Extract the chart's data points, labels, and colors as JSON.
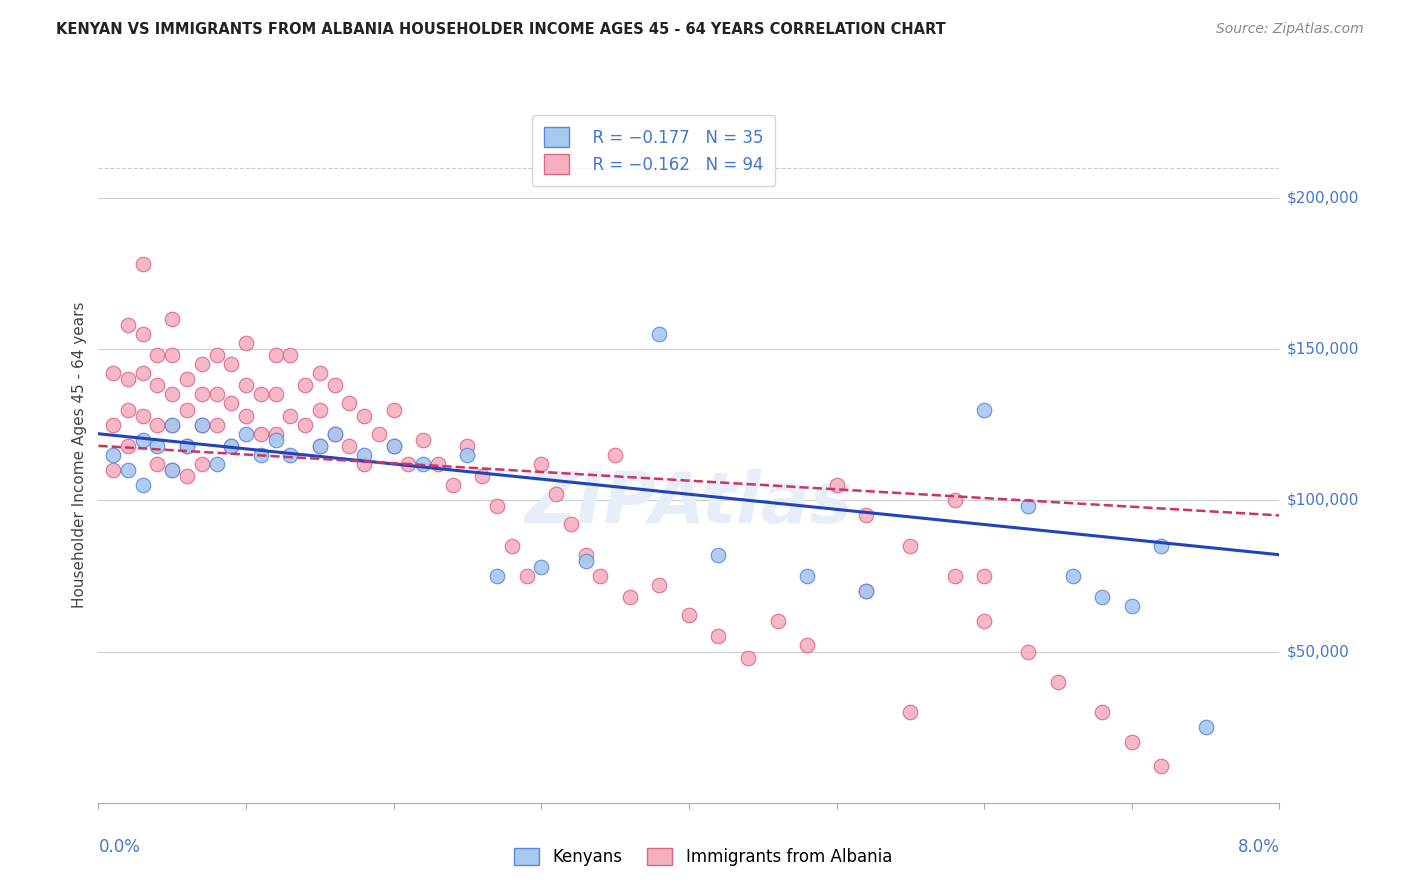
{
  "title": "KENYAN VS IMMIGRANTS FROM ALBANIA HOUSEHOLDER INCOME AGES 45 - 64 YEARS CORRELATION CHART",
  "source": "Source: ZipAtlas.com",
  "ylabel": "Householder Income Ages 45 - 64 years",
  "blue_color": "#a8c8f0",
  "blue_edge": "#5588dd",
  "pink_color": "#f5b0c0",
  "pink_edge": "#dd6688",
  "blue_line_color": "#2244bb",
  "pink_line_color": "#cc3366",
  "ytick_color": "#4477cc",
  "xlabel_color": "#4477cc",
  "title_color": "#222222",
  "source_color": "#888888",
  "watermark_color": "#ddddee",
  "grid_color": "#cccccc",
  "xlim": [
    0.0,
    0.08
  ],
  "ylim": [
    0,
    230000
  ],
  "ytick_positions": [
    50000,
    100000,
    150000,
    200000
  ],
  "ytick_labels": [
    "$50,000",
    "$100,000",
    "$150,000",
    "$200,000"
  ],
  "blue_x": [
    0.001,
    0.002,
    0.003,
    0.003,
    0.004,
    0.005,
    0.005,
    0.006,
    0.007,
    0.008,
    0.009,
    0.01,
    0.011,
    0.012,
    0.013,
    0.015,
    0.016,
    0.018,
    0.02,
    0.022,
    0.025,
    0.027,
    0.03,
    0.033,
    0.038,
    0.042,
    0.048,
    0.052,
    0.06,
    0.063,
    0.066,
    0.068,
    0.07,
    0.072,
    0.075
  ],
  "blue_y": [
    115000,
    110000,
    120000,
    105000,
    118000,
    125000,
    110000,
    118000,
    125000,
    112000,
    118000,
    122000,
    115000,
    120000,
    115000,
    118000,
    122000,
    115000,
    118000,
    112000,
    115000,
    75000,
    78000,
    80000,
    155000,
    82000,
    75000,
    70000,
    130000,
    98000,
    75000,
    68000,
    65000,
    85000,
    25000
  ],
  "pink_x": [
    0.001,
    0.001,
    0.001,
    0.002,
    0.002,
    0.002,
    0.002,
    0.003,
    0.003,
    0.003,
    0.003,
    0.004,
    0.004,
    0.004,
    0.004,
    0.005,
    0.005,
    0.005,
    0.005,
    0.005,
    0.006,
    0.006,
    0.006,
    0.006,
    0.007,
    0.007,
    0.007,
    0.007,
    0.008,
    0.008,
    0.008,
    0.009,
    0.009,
    0.009,
    0.01,
    0.01,
    0.01,
    0.011,
    0.011,
    0.012,
    0.012,
    0.012,
    0.013,
    0.013,
    0.014,
    0.014,
    0.015,
    0.015,
    0.015,
    0.016,
    0.016,
    0.017,
    0.017,
    0.018,
    0.018,
    0.019,
    0.02,
    0.02,
    0.021,
    0.022,
    0.023,
    0.024,
    0.025,
    0.026,
    0.027,
    0.028,
    0.029,
    0.03,
    0.031,
    0.032,
    0.033,
    0.034,
    0.035,
    0.036,
    0.038,
    0.04,
    0.042,
    0.044,
    0.046,
    0.048,
    0.05,
    0.052,
    0.055,
    0.058,
    0.06,
    0.063,
    0.065,
    0.068,
    0.07,
    0.072,
    0.052,
    0.055,
    0.058,
    0.06
  ],
  "pink_y": [
    142000,
    125000,
    110000,
    158000,
    140000,
    130000,
    118000,
    178000,
    155000,
    142000,
    128000,
    148000,
    138000,
    125000,
    112000,
    160000,
    148000,
    135000,
    125000,
    110000,
    140000,
    130000,
    118000,
    108000,
    145000,
    135000,
    125000,
    112000,
    148000,
    135000,
    125000,
    145000,
    132000,
    118000,
    152000,
    138000,
    128000,
    135000,
    122000,
    148000,
    135000,
    122000,
    148000,
    128000,
    138000,
    125000,
    142000,
    130000,
    118000,
    138000,
    122000,
    132000,
    118000,
    128000,
    112000,
    122000,
    130000,
    118000,
    112000,
    120000,
    112000,
    105000,
    118000,
    108000,
    98000,
    85000,
    75000,
    112000,
    102000,
    92000,
    82000,
    75000,
    115000,
    68000,
    72000,
    62000,
    55000,
    48000,
    60000,
    52000,
    105000,
    95000,
    85000,
    75000,
    60000,
    50000,
    40000,
    30000,
    20000,
    12000,
    70000,
    30000,
    100000,
    75000
  ],
  "blue_trend_x0": 0.0,
  "blue_trend_x1": 0.08,
  "blue_trend_y0": 122000,
  "blue_trend_y1": 82000,
  "pink_trend_x0": 0.0,
  "pink_trend_x1": 0.08,
  "pink_trend_y0": 118000,
  "pink_trend_y1": 95000
}
